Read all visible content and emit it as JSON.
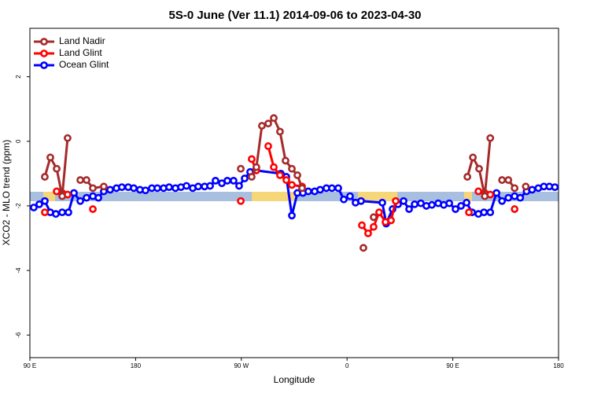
{
  "chart_data": {
    "type": "line",
    "title": "5S-0 June (Ver 11.1)   2014-09-06 to 2023-04-30",
    "x_label": "Longitude",
    "y_label": "XCO2 - MLO trend (ppm)",
    "xlim": [
      90,
      540
    ],
    "xticks": [
      {
        "value": 90,
        "label": "90 E"
      },
      {
        "value": 180,
        "label": "180"
      },
      {
        "value": 270,
        "label": "90 W"
      },
      {
        "value": 360,
        "label": "0"
      },
      {
        "value": 450,
        "label": "90 E"
      },
      {
        "value": 540,
        "label": "180"
      }
    ],
    "ylim": [
      -6.7,
      3.5
    ],
    "yticks": [
      -6,
      -4,
      -2,
      0,
      2
    ],
    "legend": "top-left",
    "series": [
      {
        "name": "Land Nadir",
        "color": "#a52a2a",
        "x": [
          102.7,
          107.4,
          112.8,
          117.5,
          122.1,
          null,
          132.9,
          138.2,
          143.6,
          152.9,
          null,
          269.5,
          null,
          278.8,
          282.8,
          287.5,
          292.9,
          297.6,
          302.9,
          307.6,
          313,
          317.7,
          321.7,
          null,
          373.9,
          null,
          382.6,
          null,
          462.4,
          467.1,
          472.4,
          477.2,
          481.9,
          null,
          491.9,
          497.3,
          502.6,
          null,
          512.1
        ],
        "values": [
          -1.1,
          -0.5,
          -0.85,
          -1.7,
          0.1,
          null,
          -1.2,
          -1.2,
          -1.45,
          -1.4,
          null,
          -0.85,
          null,
          -1.1,
          -0.8,
          0.48,
          0.55,
          0.72,
          0.3,
          -0.6,
          -0.85,
          -1.05,
          -1.45,
          null,
          -3.3,
          null,
          -2.35,
          null,
          -1.1,
          -0.5,
          -0.85,
          -1.7,
          0.1,
          null,
          -1.2,
          -1.2,
          -1.45,
          null,
          -1.4
        ]
      },
      {
        "name": "Land Glint",
        "color": "#ff0000",
        "x": [
          102.7,
          null,
          112.8,
          117.5,
          122.1,
          null,
          143.6,
          null,
          269.5,
          null,
          278.8,
          282.8,
          null,
          292.9,
          297.6,
          302.9,
          308.3,
          313,
          321.7,
          null,
          372.6,
          377.9,
          382.6,
          387.3,
          392.7,
          397.4,
          401.4,
          null,
          463.7,
          null,
          471.8,
          477.2,
          481.9,
          null,
          502.6
        ],
        "values": [
          -2.2,
          null,
          -1.55,
          -1.6,
          -1.65,
          null,
          -2.1,
          null,
          -1.85,
          null,
          -0.55,
          -0.9,
          null,
          -0.15,
          -0.8,
          -1.05,
          -1.2,
          -1.35,
          -1.4,
          null,
          -2.6,
          -2.85,
          -2.65,
          -2.2,
          -2.5,
          -2.45,
          -1.85,
          null,
          -2.2,
          null,
          -1.55,
          -1.6,
          -1.65,
          null,
          -2.1
        ]
      },
      {
        "name": "Ocean Glint",
        "color": "#0000ff",
        "x": [
          93.3,
          98,
          102.7,
          107.4,
          112.1,
          117.5,
          122.8,
          127.5,
          132.9,
          138.2,
          143.6,
          148.3,
          152.9,
          158.3,
          163.7,
          168.3,
          173.7,
          178.4,
          183.7,
          188.4,
          193.8,
          198.5,
          203.8,
          208.5,
          213.9,
          218.6,
          223.3,
          228.6,
          233.3,
          238.7,
          243.4,
          248,
          253.4,
          258.1,
          263.4,
          268.1,
          272.8,
          277.5,
          282.2,
          303.6,
          308.3,
          313,
          317.7,
          322.4,
          327,
          332.4,
          337.1,
          342.4,
          347.1,
          352.5,
          357.2,
          362.5,
          367.2,
          371.9,
          390,
          393.3,
          398.7,
          403.4,
          408.1,
          412.8,
          417.5,
          422.8,
          427.5,
          432.2,
          437.6,
          442.3,
          447,
          452.3,
          457,
          461.7,
          466.4,
          471.8,
          476.5,
          481.9,
          487.2,
          491.9,
          497.3,
          502.6,
          507.4,
          512.8,
          517.5,
          522.8,
          527.5,
          532.2,
          536.9
        ],
        "values": [
          -2.05,
          -1.95,
          -1.85,
          -2.2,
          -2.25,
          -2.2,
          -2.2,
          -1.6,
          -1.85,
          -1.75,
          -1.7,
          -1.75,
          -1.55,
          -1.5,
          -1.45,
          -1.42,
          -1.42,
          -1.45,
          -1.5,
          -1.52,
          -1.45,
          -1.45,
          -1.45,
          -1.42,
          -1.45,
          -1.42,
          -1.38,
          -1.45,
          -1.4,
          -1.4,
          -1.38,
          -1.22,
          -1.3,
          -1.22,
          -1.22,
          -1.38,
          -1.15,
          -0.95,
          -0.9,
          -1.0,
          -1.1,
          -2.3,
          -1.6,
          -1.6,
          -1.55,
          -1.55,
          -1.5,
          -1.45,
          -1.45,
          -1.45,
          -1.8,
          -1.7,
          -1.9,
          -1.85,
          -1.9,
          -2.55,
          -2.1,
          -1.95,
          -1.85,
          -2.1,
          -1.95,
          -1.92,
          -2.0,
          -1.97,
          -1.92,
          -1.97,
          -1.92,
          -2.1,
          -2.0,
          -1.9,
          -2.2,
          -2.25,
          -2.2,
          -2.2,
          -1.6,
          -1.85,
          -1.75,
          -1.7,
          -1.75,
          -1.55,
          -1.5,
          -1.45,
          -1.4,
          -1.4,
          -1.42
        ]
      }
    ]
  }
}
